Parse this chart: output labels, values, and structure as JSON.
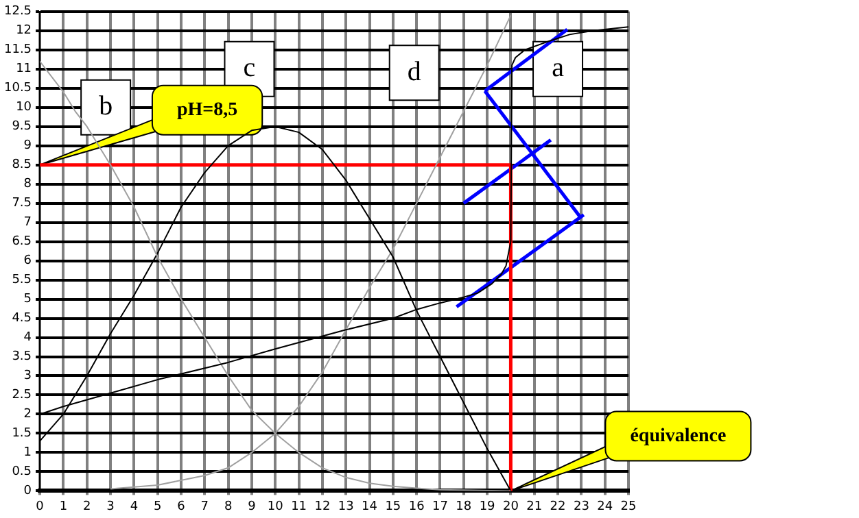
{
  "chart_data": {
    "type": "line",
    "xlim": [
      0,
      25
    ],
    "ylim": [
      0,
      12.5
    ],
    "xticks": [
      0,
      1,
      2,
      3,
      4,
      5,
      6,
      7,
      8,
      9,
      10,
      11,
      12,
      13,
      14,
      15,
      16,
      17,
      18,
      19,
      20,
      21,
      22,
      23,
      24,
      25
    ],
    "yticks": [
      0,
      0.5,
      1,
      1.5,
      2,
      2.5,
      3,
      3.5,
      4,
      4.5,
      5,
      5.5,
      6,
      6.5,
      7,
      7.5,
      8,
      8.5,
      9,
      9.5,
      10,
      10.5,
      11,
      11.5,
      12,
      12.5
    ],
    "grid": true,
    "marker": "none",
    "line_style": "solid",
    "legend": false,
    "series": [
      {
        "type": "line",
        "color": "#000000",
        "x": [
          0,
          1,
          3,
          5,
          8,
          10,
          13,
          15,
          16,
          17,
          18,
          18.6,
          19.2,
          19.6,
          19.8,
          20,
          20.05,
          20.2,
          20.6,
          21.5,
          22.5,
          23.5,
          25
        ],
        "values": [
          2,
          2.2,
          2.55,
          2.9,
          3.35,
          3.7,
          4.2,
          4.5,
          4.73,
          4.9,
          5.05,
          5.16,
          5.4,
          5.65,
          5.87,
          6.5,
          11.1,
          11.3,
          11.5,
          11.7,
          11.9,
          12,
          12.1
        ]
      },
      {
        "type": "line",
        "color": "#a0a0a0",
        "x": [
          0,
          1,
          1.5,
          2,
          3,
          4,
          5,
          6,
          7,
          8,
          9,
          10,
          11,
          12,
          13,
          14,
          15,
          16,
          17,
          20
        ],
        "values": [
          11.2,
          10.4,
          9.9,
          9.5,
          8.5,
          7.4,
          6.1,
          5,
          4,
          3,
          2.1,
          1.5,
          1,
          0.6,
          0.35,
          0.2,
          0.12,
          0.07,
          0.03,
          0
        ]
      },
      {
        "type": "line",
        "color": "#000000",
        "x": [
          0,
          1,
          2,
          3,
          4,
          5,
          6,
          7,
          8,
          9,
          10,
          11,
          12,
          13,
          14,
          15,
          16,
          17,
          18,
          19,
          20
        ],
        "values": [
          1.3,
          2,
          3,
          4.1,
          5.1,
          6.2,
          7.4,
          8.3,
          9,
          9.4,
          9.5,
          9.35,
          8.9,
          8.1,
          7.1,
          6.1,
          4.7,
          3.5,
          2.3,
          1.1,
          0
        ]
      },
      {
        "type": "line",
        "color": "#a0a0a0",
        "x": [
          3,
          5,
          7,
          8,
          9,
          10,
          11,
          12,
          13,
          14,
          15,
          16,
          17,
          18,
          19,
          20
        ],
        "values": [
          0.05,
          0.15,
          0.4,
          0.6,
          1,
          1.5,
          2.2,
          3.1,
          4.2,
          5.3,
          6.3,
          7.5,
          8.7,
          9.9,
          11.1,
          12.4
        ]
      },
      {
        "type": "line",
        "color": "#ff0000",
        "x": [
          0,
          20,
          20
        ],
        "values": [
          8.5,
          8.5,
          0
        ]
      },
      {
        "type": "line",
        "color": "#0000ff",
        "x": [
          18.9,
          22.4
        ],
        "values": [
          10.43,
          12.03
        ]
      },
      {
        "type": "line",
        "color": "#0000ff",
        "x": [
          18,
          21.7
        ],
        "values": [
          7.5,
          9.15
        ]
      },
      {
        "type": "line",
        "color": "#0000ff",
        "x": [
          17.7,
          23.1
        ],
        "values": [
          4.8,
          7.2
        ]
      },
      {
        "type": "line",
        "color": "#0000ff",
        "x": [
          18.9,
          23
        ],
        "values": [
          10.43,
          7.1
        ]
      }
    ],
    "annotations": [
      {
        "text": "a",
        "x": 22,
        "y": 11
      },
      {
        "text": "b",
        "x": 2.8,
        "y": 10
      },
      {
        "text": "c",
        "x": 8.9,
        "y": 11
      },
      {
        "text": "d",
        "x": 15.9,
        "y": 10.9
      },
      {
        "text": "pH=8,5",
        "x": 0,
        "y": 8.5
      },
      {
        "text": "équivalence",
        "x": 20,
        "y": 0
      }
    ]
  }
}
